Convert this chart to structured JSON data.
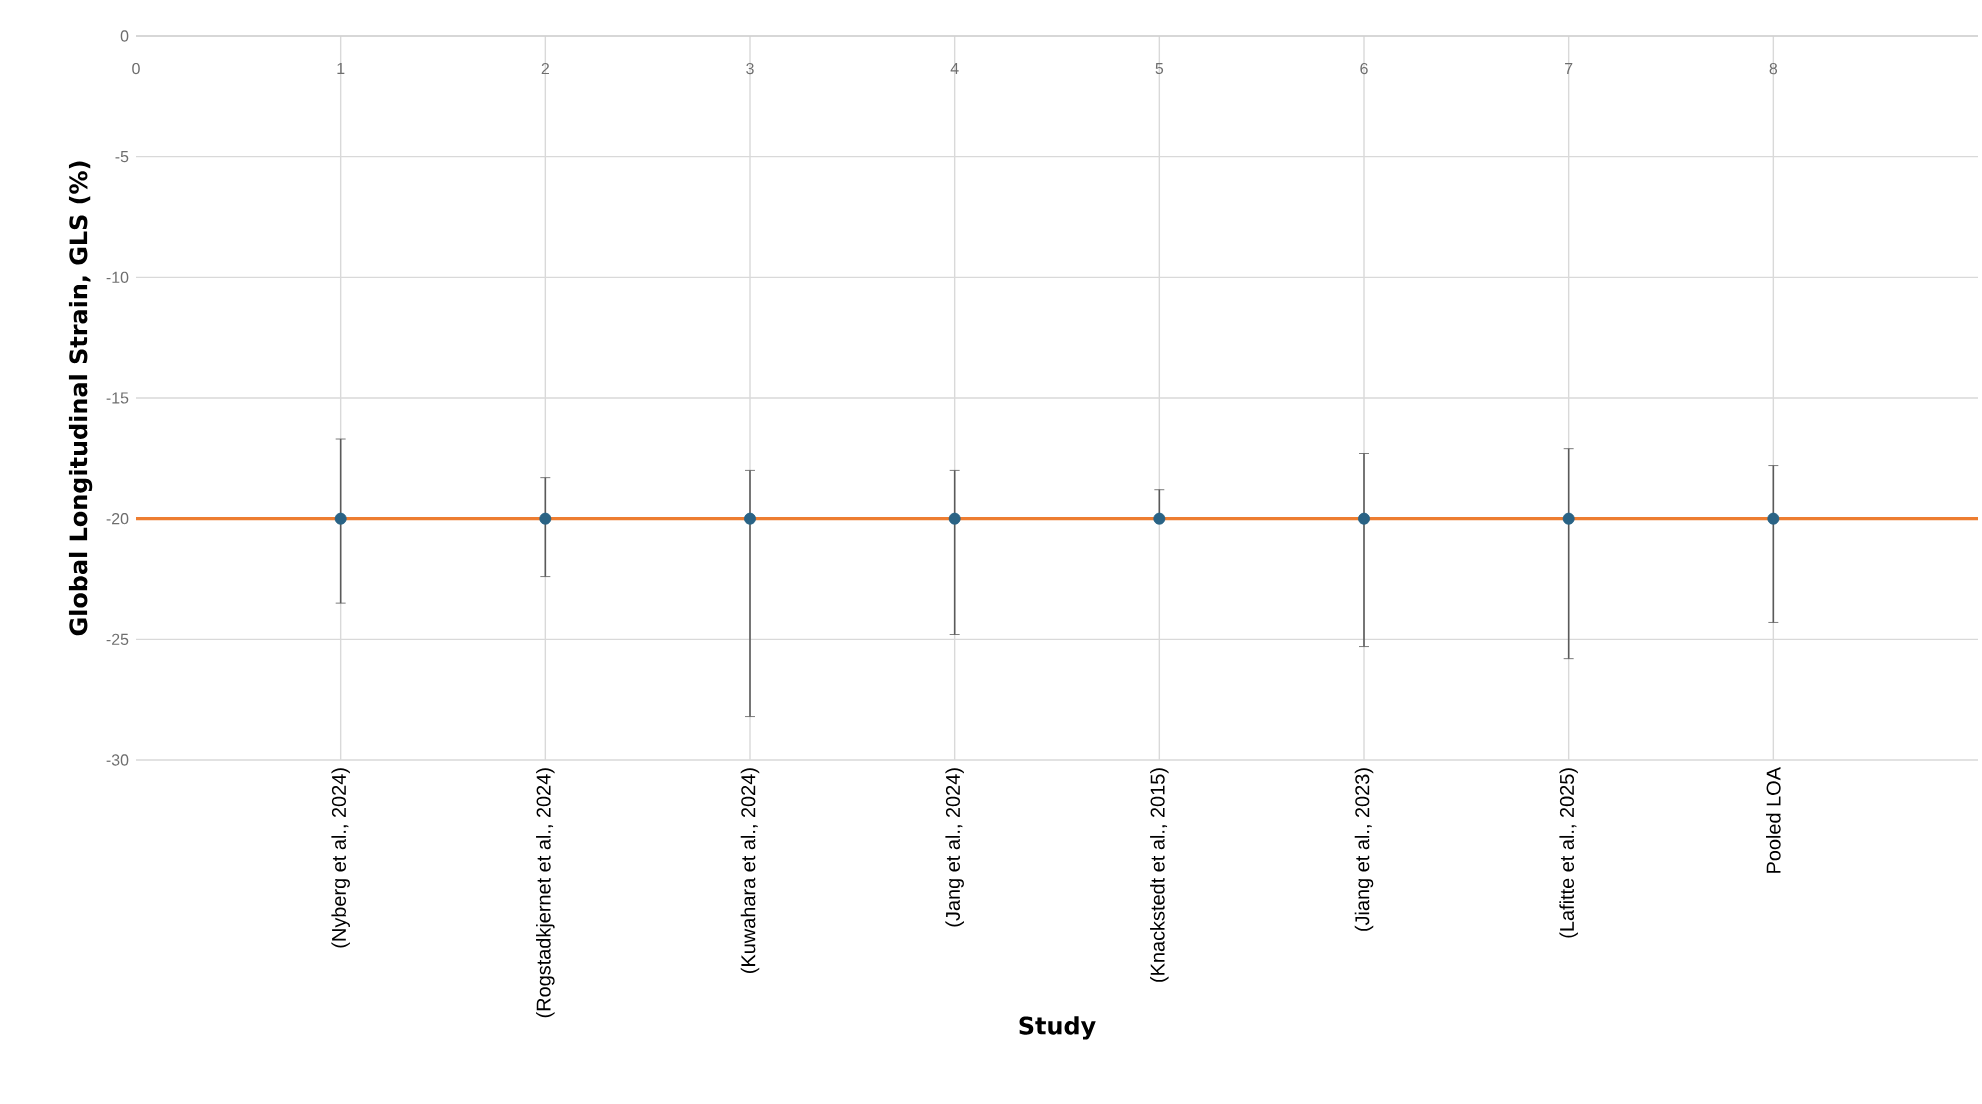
{
  "chart_data": {
    "type": "scatter",
    "xlabel": "Study",
    "ylabel": "Global Longitudinal Strain, GLS (%)",
    "categories": [
      "(Nyberg et al., 2024)",
      "(Rogstadkjernet et al., 2024)",
      "(Kuwahara et al., 2024)",
      "(Jang et al., 2024)",
      "(Knackstedt et al., 2015)",
      "(Jiang et al., 2023)",
      "(Lafitte et al., 2025)",
      "Pooled LOA"
    ],
    "series": [
      {
        "color": "#2a6385",
        "values": [
          -20,
          -20,
          -20,
          -20,
          -20,
          -20,
          -20,
          -20
        ],
        "errors": [
          [
            -23.5,
            -16.7
          ],
          [
            -22.4,
            -18.3
          ],
          [
            -28.2,
            -18.0
          ],
          [
            -24.8,
            -18.0
          ],
          [
            -20,
            -18.8
          ],
          [
            -25.3,
            -17.3
          ],
          [
            -25.8,
            -17.1
          ],
          [
            -24.3,
            -17.8
          ]
        ]
      }
    ],
    "x2lim": [
      0,
      9
    ],
    "x2ticks": [
      0,
      1,
      2,
      3,
      4,
      5,
      6,
      7,
      8
    ],
    "ylim": [
      -30,
      0
    ],
    "yticks": [
      -30,
      -25,
      -20,
      -15,
      -10,
      -5,
      0
    ],
    "ref_lines": [
      {
        "axis": "y",
        "value": -20,
        "color": "#ed7d31"
      }
    ],
    "grid": true
  }
}
